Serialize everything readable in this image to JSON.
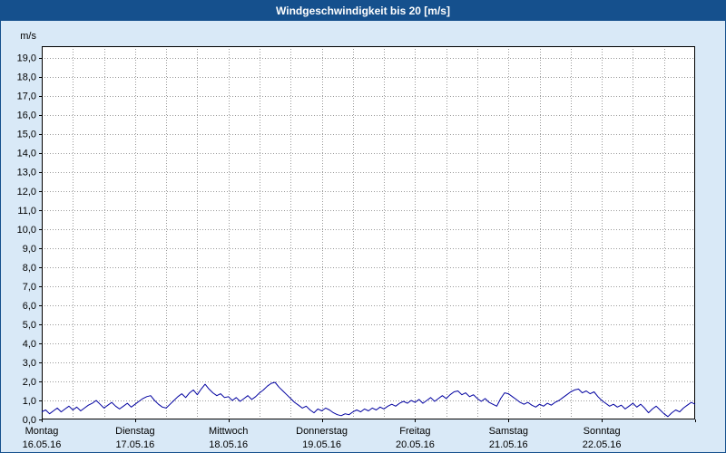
{
  "header": {
    "title": "Windgeschwindigkeit bis 20 [m/s]"
  },
  "colors": {
    "title_bar_bg": "#15508d",
    "background": "#d9e9f7",
    "plot_bg": "#ffffff",
    "grid": "#999999",
    "axis": "#000000",
    "line": "#0000a0",
    "text": "#000000"
  },
  "chart_data": {
    "type": "line",
    "title": "Windgeschwindigkeit bis 20 [m/s]",
    "xlabel": "",
    "ylabel": "m/s",
    "ylim": [
      0,
      20
    ],
    "ytick_step": 1.0,
    "ytick_label_max": 19,
    "grid": true,
    "grid_hours": 8,
    "hours_per_day": 24,
    "days": [
      {
        "name": "Montag",
        "date": "16.05.16"
      },
      {
        "name": "Dienstag",
        "date": "17.05.16"
      },
      {
        "name": "Mittwoch",
        "date": "18.05.16"
      },
      {
        "name": "Donnerstag",
        "date": "19.05.16"
      },
      {
        "name": "Freitag",
        "date": "20.05.16"
      },
      {
        "name": "Samstag",
        "date": "21.05.16"
      },
      {
        "name": "Sonntag",
        "date": "22.05.16"
      }
    ],
    "series": [
      {
        "name": "Windgeschwindigkeit",
        "unit": "m/s",
        "values": [
          0.4,
          0.5,
          0.3,
          0.45,
          0.6,
          0.4,
          0.55,
          0.7,
          0.5,
          0.65,
          0.45,
          0.6,
          0.75,
          0.85,
          1.0,
          0.8,
          0.6,
          0.75,
          0.9,
          0.7,
          0.55,
          0.7,
          0.85,
          0.65,
          0.8,
          0.95,
          1.1,
          1.2,
          1.25,
          1.0,
          0.8,
          0.65,
          0.6,
          0.8,
          1.0,
          1.2,
          1.35,
          1.15,
          1.4,
          1.55,
          1.3,
          1.6,
          1.85,
          1.6,
          1.4,
          1.25,
          1.35,
          1.15,
          1.2,
          1.0,
          1.15,
          0.95,
          1.1,
          1.25,
          1.05,
          1.2,
          1.4,
          1.55,
          1.75,
          1.9,
          1.95,
          1.7,
          1.5,
          1.3,
          1.1,
          0.9,
          0.75,
          0.6,
          0.7,
          0.5,
          0.35,
          0.55,
          0.45,
          0.6,
          0.5,
          0.35,
          0.25,
          0.2,
          0.3,
          0.25,
          0.4,
          0.5,
          0.4,
          0.55,
          0.45,
          0.6,
          0.5,
          0.65,
          0.55,
          0.7,
          0.8,
          0.7,
          0.85,
          0.95,
          0.85,
          1.0,
          0.9,
          1.05,
          0.85,
          1.0,
          1.15,
          0.95,
          1.1,
          1.25,
          1.1,
          1.3,
          1.45,
          1.5,
          1.3,
          1.4,
          1.2,
          1.3,
          1.1,
          0.95,
          1.1,
          0.9,
          0.8,
          0.7,
          1.1,
          1.4,
          1.35,
          1.2,
          1.05,
          0.9,
          0.8,
          0.9,
          0.75,
          0.65,
          0.8,
          0.7,
          0.85,
          0.75,
          0.9,
          1.0,
          1.15,
          1.3,
          1.45,
          1.55,
          1.6,
          1.4,
          1.5,
          1.35,
          1.45,
          1.2,
          1.0,
          0.85,
          0.7,
          0.8,
          0.65,
          0.75,
          0.55,
          0.7,
          0.85,
          0.65,
          0.8,
          0.6,
          0.35,
          0.55,
          0.7,
          0.5,
          0.3,
          0.15,
          0.35,
          0.5,
          0.4,
          0.6,
          0.75,
          0.9,
          0.8
        ]
      }
    ],
    "legend_position": "none"
  }
}
